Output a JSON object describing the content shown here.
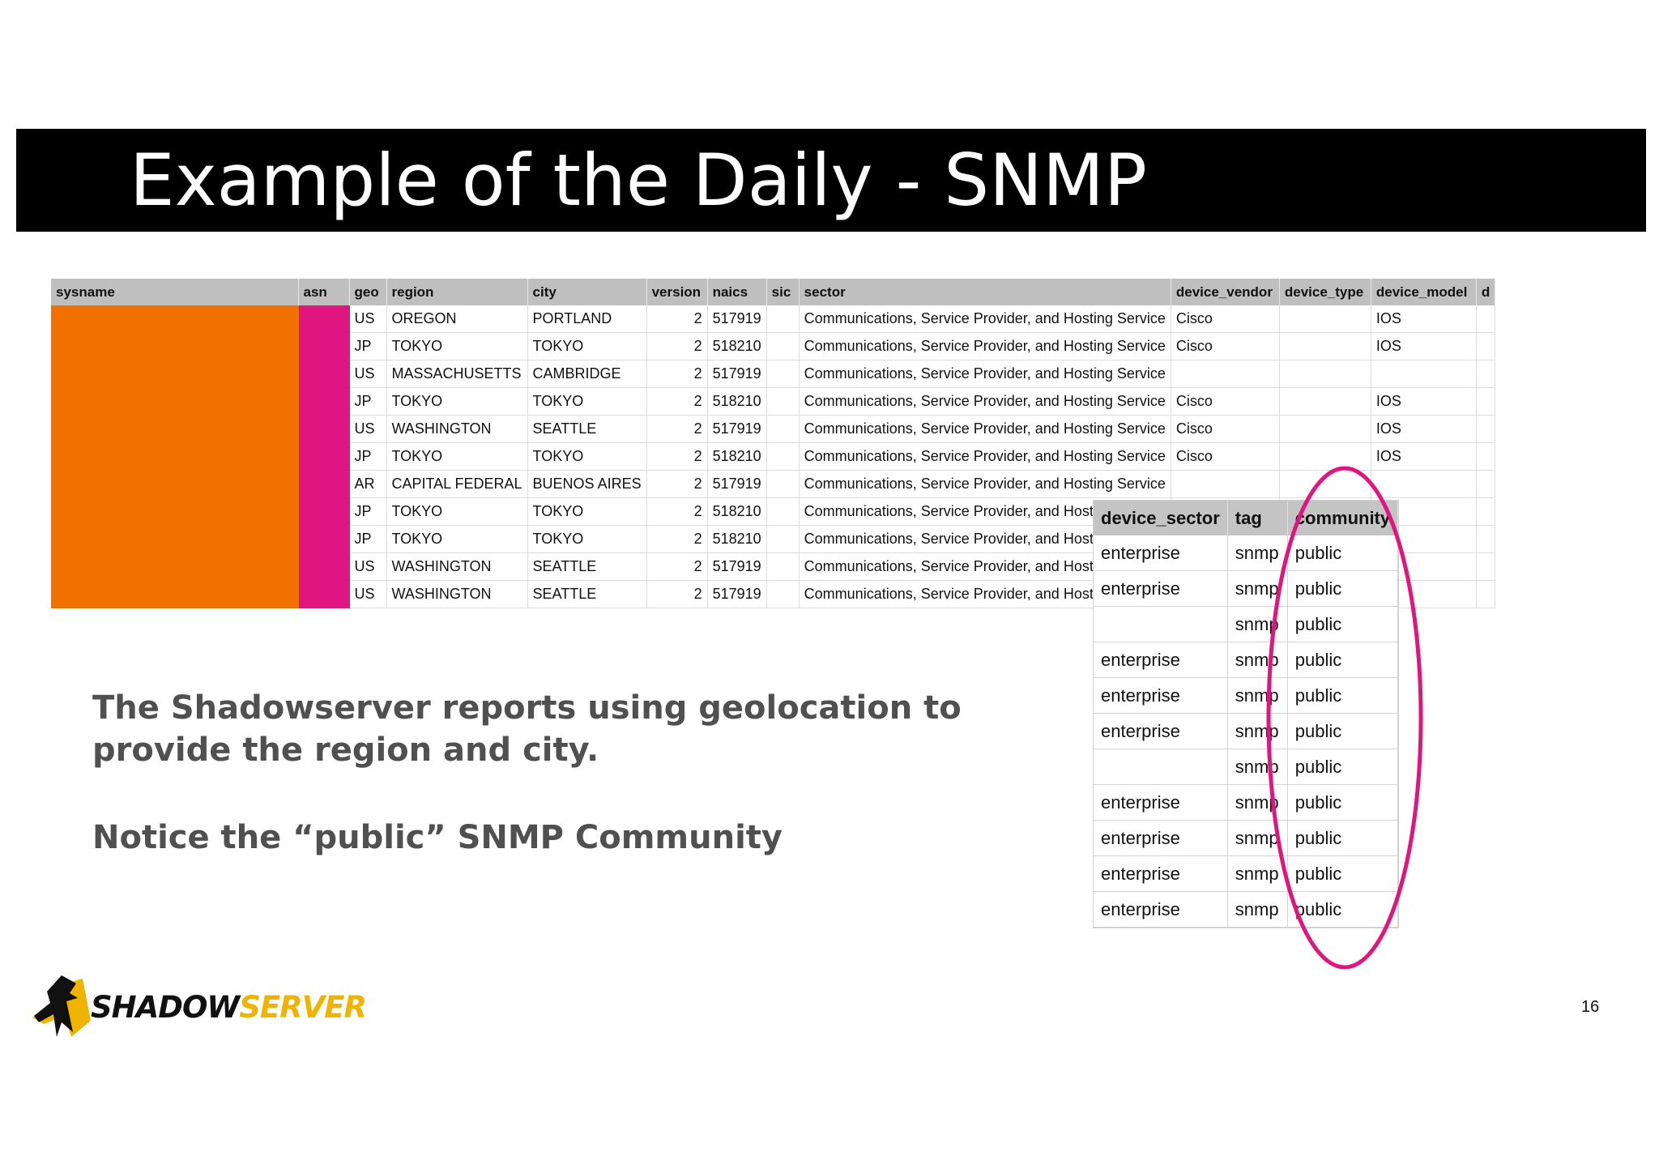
{
  "slide": {
    "title": "Example of the Daily - SNMP",
    "page_number": "16"
  },
  "main_table": {
    "headers": [
      "sysname",
      "asn",
      "geo",
      "region",
      "city",
      "version",
      "naics",
      "sic",
      "sector",
      "device_vendor",
      "device_type",
      "device_model",
      "d"
    ],
    "rows": [
      [
        "",
        "",
        "US",
        "OREGON",
        "PORTLAND",
        "2",
        "517919",
        "",
        "Communications, Service Provider, and Hosting Service",
        "Cisco",
        "",
        "IOS",
        ""
      ],
      [
        "",
        "",
        "JP",
        "TOKYO",
        "TOKYO",
        "2",
        "518210",
        "",
        "Communications, Service Provider, and Hosting Service",
        "Cisco",
        "",
        "IOS",
        ""
      ],
      [
        "",
        "",
        "US",
        "MASSACHUSETTS",
        "CAMBRIDGE",
        "2",
        "517919",
        "",
        "Communications, Service Provider, and Hosting Service",
        "",
        "",
        "",
        ""
      ],
      [
        "",
        "",
        "JP",
        "TOKYO",
        "TOKYO",
        "2",
        "518210",
        "",
        "Communications, Service Provider, and Hosting Service",
        "Cisco",
        "",
        "IOS",
        ""
      ],
      [
        "",
        "",
        "US",
        "WASHINGTON",
        "SEATTLE",
        "2",
        "517919",
        "",
        "Communications, Service Provider, and Hosting Service",
        "Cisco",
        "",
        "IOS",
        ""
      ],
      [
        "",
        "",
        "JP",
        "TOKYO",
        "TOKYO",
        "2",
        "518210",
        "",
        "Communications, Service Provider, and Hosting Service",
        "Cisco",
        "",
        "IOS",
        ""
      ],
      [
        "",
        "",
        "AR",
        "CAPITAL FEDERAL",
        "BUENOS AIRES",
        "2",
        "517919",
        "",
        "Communications, Service Provider, and Hosting Service",
        "",
        "",
        "",
        ""
      ],
      [
        "",
        "",
        "JP",
        "TOKYO",
        "TOKYO",
        "2",
        "518210",
        "",
        "Communications, Service Provider, and Hosting S",
        "",
        "",
        "",
        ""
      ],
      [
        "",
        "",
        "JP",
        "TOKYO",
        "TOKYO",
        "2",
        "518210",
        "",
        "Communications, Service Provider, and Hosting S",
        "",
        "",
        "",
        ""
      ],
      [
        "",
        "",
        "US",
        "WASHINGTON",
        "SEATTLE",
        "2",
        "517919",
        "",
        "Communications, Service Provider, and Hosting S",
        "",
        "",
        "",
        ""
      ],
      [
        "",
        "",
        "US",
        "WASHINGTON",
        "SEATTLE",
        "2",
        "517919",
        "",
        "Communications, Service Provider, and Hosting S",
        "",
        "",
        "",
        ""
      ]
    ],
    "redacted_color_sysname": "#f07000",
    "redacted_color_asn": "#e0157f"
  },
  "overlay_table": {
    "headers": [
      "device_sector",
      "tag",
      "community"
    ],
    "rows": [
      [
        "enterprise",
        "snmp",
        "public"
      ],
      [
        "enterprise",
        "snmp",
        "public"
      ],
      [
        "",
        "snmp",
        "public"
      ],
      [
        "enterprise",
        "snmp",
        "public"
      ],
      [
        "enterprise",
        "snmp",
        "public"
      ],
      [
        "enterprise",
        "snmp",
        "public"
      ],
      [
        "",
        "snmp",
        "public"
      ],
      [
        "enterprise",
        "snmp",
        "public"
      ],
      [
        "enterprise",
        "snmp",
        "public"
      ],
      [
        "enterprise",
        "snmp",
        "public"
      ],
      [
        "enterprise",
        "snmp",
        "public"
      ]
    ],
    "highlight_color": "#e0157f"
  },
  "body": {
    "line1": "The Shadowserver reports using geolocation to",
    "line2": "provide the region and city.",
    "line3": "Notice the “public” SNMP Community"
  },
  "logo": {
    "word_a": "SHADOW",
    "word_b": "SERVER",
    "icon": "shadowserver-logo-icon"
  }
}
